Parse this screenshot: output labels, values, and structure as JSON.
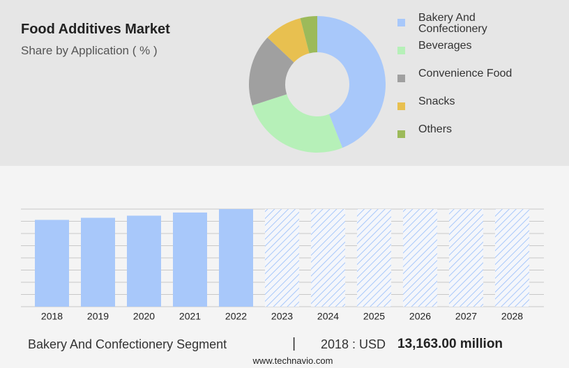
{
  "chart_data": [
    {
      "type": "pie",
      "title": "Food Additives Market",
      "subtitle": "Share by Application ( % )",
      "categories": [
        "Bakery And Confectionery",
        "Beverages",
        "Convenience Food",
        "Snacks",
        "Others"
      ],
      "values": [
        44,
        26,
        17,
        9,
        4
      ],
      "colors": [
        "#a8c8fa",
        "#b6f0b8",
        "#a0a0a0",
        "#e8c050",
        "#9cba5a"
      ]
    },
    {
      "type": "bar",
      "categories": [
        "2018",
        "2019",
        "2020",
        "2021",
        "2022",
        "2023",
        "2024",
        "2025",
        "2026",
        "2027",
        "2028"
      ],
      "values": [
        13163,
        13480,
        13800,
        14280,
        14800,
        null,
        null,
        null,
        null,
        null,
        null
      ],
      "color": "#a8c8fa",
      "ylim": [
        0,
        14800
      ],
      "grid": true
    }
  ],
  "footer": {
    "segment": "Bakery And Confectionery Segment",
    "separator": "|",
    "year_label": "2018 : USD",
    "value": "13,163.00 million",
    "source": "www.technavio.com"
  }
}
